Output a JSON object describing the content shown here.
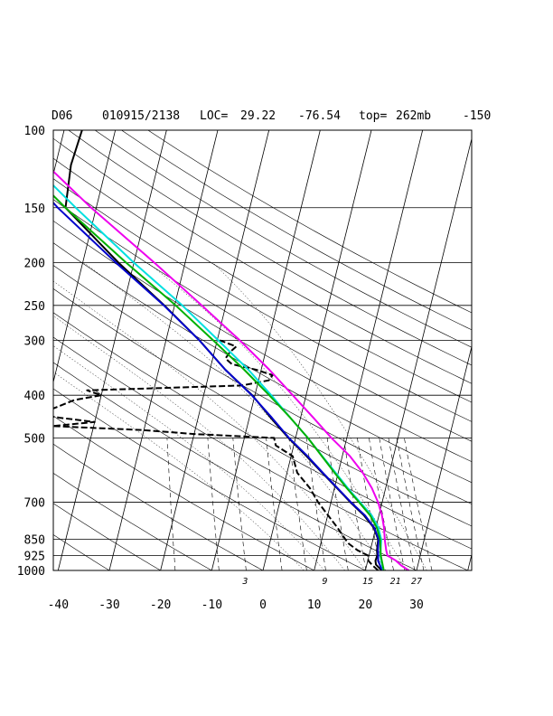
{
  "header": {
    "station": "D06",
    "datetime": "010915/2138",
    "loc_label": "LOC=",
    "lat": "29.22",
    "lon": "-76.54",
    "top_label": "top=",
    "top_value": "262mb",
    "extra": "-150"
  },
  "chart_data": {
    "type": "line",
    "subtype": "skew-t log-p sounding",
    "y_axis": {
      "scale": "log",
      "unit": "mb",
      "ticks": [
        100,
        150,
        200,
        250,
        300,
        400,
        500,
        700,
        850,
        925,
        1000
      ],
      "range": [
        1000,
        100
      ]
    },
    "x_axis": {
      "unit": "degC",
      "ticks": [
        -40,
        -30,
        -20,
        -10,
        0,
        10,
        20,
        30
      ],
      "range": [
        -40,
        40
      ]
    },
    "mixing_ratio_labels": [
      "3",
      "9",
      "15",
      "21",
      "27"
    ],
    "grid": true,
    "colors": {
      "temperature": "#000000",
      "dewpoint": "#000000",
      "blue": "#0000cc",
      "cyan": "#00e0e0",
      "green": "#00b000",
      "magenta": "#ee00ee",
      "grid": "#000000"
    },
    "series": [
      {
        "style": "solid",
        "color_key": "temperature",
        "p": [
          1000,
          985,
          970,
          950,
          925,
          900,
          850,
          800,
          750,
          700,
          650,
          600,
          550,
          500,
          470,
          450,
          400,
          350,
          300,
          250,
          200,
          150,
          120,
          100
        ],
        "t": [
          23.2,
          22.5,
          21.8,
          21.5,
          21.6,
          21.3,
          21.0,
          19.6,
          17.1,
          13.8,
          10.5,
          6.9,
          3.0,
          -1.4,
          -4.0,
          -5.8,
          -10.5,
          -17.0,
          -23.5,
          -32.0,
          -43.0,
          -56.0,
          -57.0,
          -56.5
        ]
      },
      {
        "style": "dashed",
        "color_key": "dewpoint",
        "p": [
          1000,
          975,
          950,
          925,
          900,
          870,
          850,
          800,
          750,
          700,
          650,
          600,
          550,
          520,
          500,
          490,
          480,
          470,
          460,
          450,
          440,
          430,
          410,
          400,
          390,
          380,
          370,
          360,
          350,
          340,
          330,
          320,
          310,
          300
        ],
        "t": [
          22.5,
          21.2,
          20.1,
          19.8,
          17.5,
          15.5,
          14.6,
          12.5,
          10.1,
          7.5,
          5.2,
          2.0,
          0.3,
          -3.5,
          -4.2,
          -20.0,
          -30.0,
          -48.0,
          -40.0,
          -47.0,
          -52.0,
          -49.0,
          -45.0,
          -40.0,
          -43.0,
          -13.0,
          -8.0,
          -7.5,
          -11.0,
          -16.0,
          -17.5,
          -17.0,
          -16.0,
          -19.5
        ]
      },
      {
        "style": "solid",
        "color_key": "blue",
        "p": [
          1000,
          950,
          925,
          900,
          850,
          800,
          750,
          700,
          650,
          600,
          550,
          500,
          450,
          400,
          350,
          300,
          250,
          200,
          150,
          100
        ],
        "t": [
          23.3,
          22.0,
          21.8,
          21.5,
          21.1,
          19.7,
          17.3,
          13.9,
          10.6,
          7.0,
          3.2,
          -1.3,
          -5.6,
          -10.6,
          -17.0,
          -23.5,
          -32.1,
          -43.5,
          -57.5,
          -75.0
        ]
      },
      {
        "style": "solid",
        "color_key": "cyan",
        "p": [
          1000,
          925,
          850,
          800,
          750,
          700,
          650,
          600,
          550,
          500,
          450,
          400,
          350,
          300,
          250,
          200,
          150,
          100
        ],
        "t": [
          23.5,
          22.2,
          21.6,
          20.5,
          18.6,
          15.7,
          12.6,
          9.5,
          6.1,
          2.4,
          -2.0,
          -6.8,
          -12.5,
          -19.8,
          -28.5,
          -40.0,
          -54.0,
          -73.0
        ]
      },
      {
        "style": "solid",
        "color_key": "green",
        "p": [
          1000,
          925,
          850,
          800,
          750,
          700,
          650,
          600,
          550,
          500,
          450,
          400,
          350,
          300,
          250,
          200,
          150,
          100
        ],
        "t": [
          23.6,
          22.3,
          21.4,
          20.2,
          18.3,
          15.5,
          12.4,
          9.3,
          6.0,
          2.4,
          -2.0,
          -7.2,
          -13.3,
          -20.8,
          -29.8,
          -41.5,
          -56.0,
          -75.0
        ]
      },
      {
        "style": "solid",
        "color_key": "magenta",
        "p": [
          1000,
          975,
          950,
          925,
          900,
          850,
          800,
          750,
          700,
          650,
          600,
          550,
          500,
          450,
          400,
          350,
          300,
          250,
          200,
          150,
          100
        ],
        "t": [
          28.5,
          26.8,
          25.5,
          23.6,
          23.1,
          22.3,
          21.6,
          20.6,
          19.2,
          17.3,
          14.8,
          11.5,
          7.0,
          2.5,
          -2.6,
          -8.4,
          -15.6,
          -24.7,
          -36.0,
          -51.0,
          -70.5
        ]
      }
    ]
  }
}
